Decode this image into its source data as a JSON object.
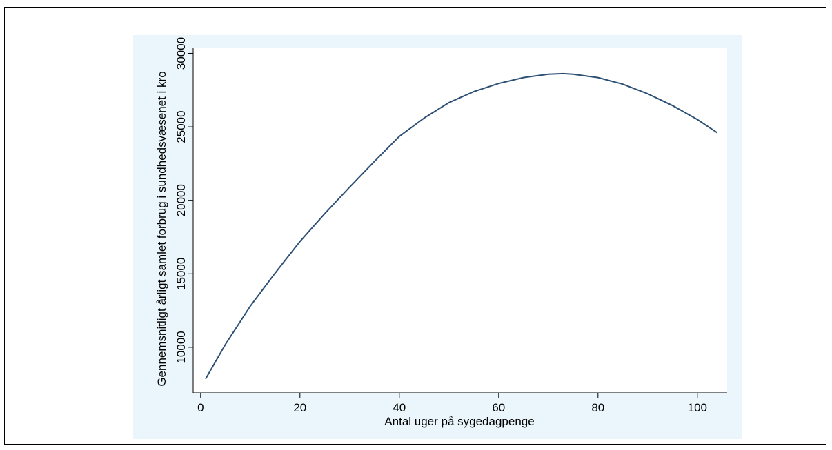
{
  "chart_data": {
    "type": "line",
    "title": "",
    "xlabel": "Antal uger på sygedagpenge",
    "ylabel": "Gennemsnitligt årligt samlet forbrug i sundhedsvæsenet i kro",
    "xlim": [
      -1.5,
      106
    ],
    "ylim": [
      6900,
      30350
    ],
    "x_ticks": [
      0,
      20,
      40,
      60,
      80,
      100
    ],
    "y_ticks": [
      10000,
      15000,
      20000,
      25000,
      30000
    ],
    "grid": false,
    "legend": "none",
    "colors": {
      "line": "#2c4f74",
      "plot_background": "#ffffff",
      "outer_background": "#eaf6fb"
    },
    "series": [
      {
        "x": [
          1,
          5,
          10,
          15,
          20,
          25,
          30,
          35,
          40,
          45,
          50,
          55,
          60,
          65,
          70,
          73,
          75,
          80,
          85,
          90,
          95,
          100,
          104
        ],
        "y": [
          7850,
          10200,
          12800,
          15050,
          17200,
          19100,
          20900,
          22650,
          24350,
          25600,
          26650,
          27400,
          27950,
          28350,
          28580,
          28620,
          28580,
          28350,
          27900,
          27250,
          26450,
          25500,
          24600
        ]
      }
    ]
  }
}
